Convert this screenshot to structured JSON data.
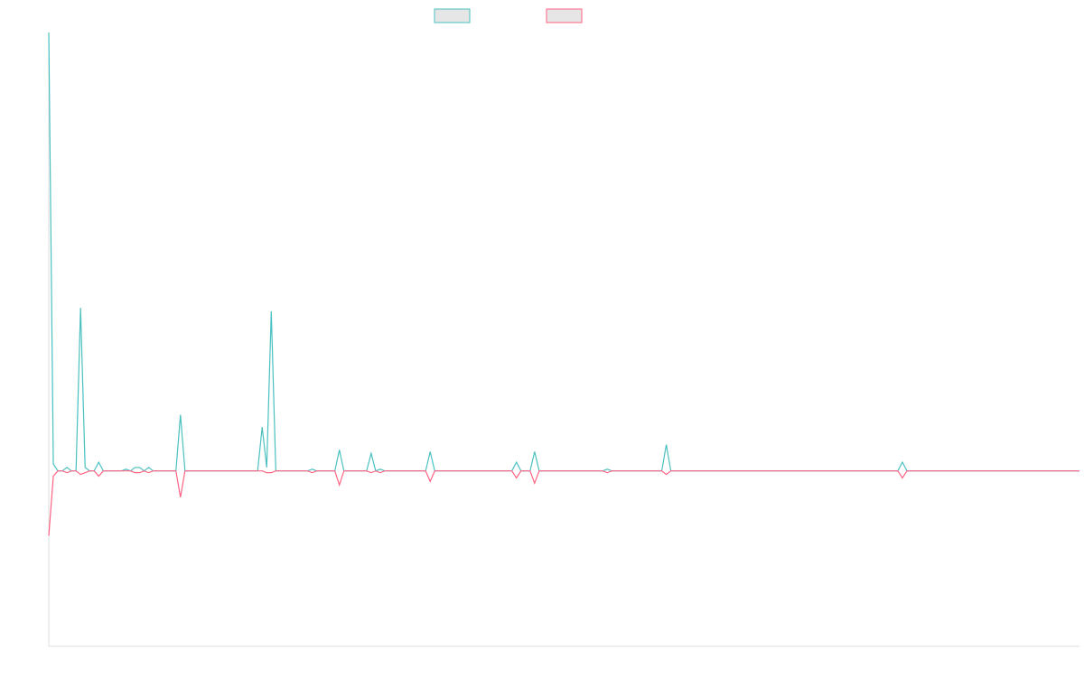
{
  "chart_data": {
    "type": "line",
    "title": "",
    "xlabel": "",
    "ylabel": "",
    "ylim": [
      -1,
      2.5
    ],
    "grid": false,
    "legend_position": "top-center",
    "colors": {
      "series_1": "#4bc0c0",
      "series_2": "#ff6384",
      "legend_fill": "#e6e6e6",
      "axis": "#dddddd"
    },
    "series": [
      {
        "values": [
          2.5,
          0.04,
          0,
          0,
          0.02,
          0,
          0,
          0.93,
          0.02,
          0,
          0,
          0.05,
          0,
          0,
          0,
          0,
          0,
          0.01,
          0,
          0.02,
          0.02,
          0,
          0.02,
          0,
          0,
          0,
          0,
          0,
          0,
          0.32,
          0,
          0,
          0,
          0,
          0,
          0,
          0,
          0,
          0,
          0,
          0,
          0,
          0,
          0,
          0,
          0,
          0,
          0.25,
          0.02,
          0.91,
          0,
          0,
          0,
          0,
          0,
          0,
          0,
          0,
          0.01,
          0,
          0,
          0,
          0,
          0,
          0.12,
          0,
          0,
          0,
          0,
          0,
          0,
          0.1,
          0,
          0.01,
          0,
          0,
          0,
          0,
          0,
          0,
          0,
          0,
          0,
          0,
          0.11,
          0,
          0,
          0,
          0,
          0,
          0,
          0,
          0,
          0,
          0,
          0,
          0,
          0,
          0,
          0,
          0,
          0,
          0,
          0.05,
          0,
          0,
          0,
          0.11,
          0,
          0,
          0,
          0,
          0,
          0,
          0,
          0,
          0,
          0,
          0,
          0,
          0,
          0,
          0,
          0.01,
          0,
          0,
          0,
          0,
          0,
          0,
          0,
          0,
          0,
          0,
          0,
          0,
          0.15,
          0,
          0,
          0,
          0,
          0,
          0,
          0,
          0,
          0,
          0,
          0,
          0,
          0,
          0,
          0,
          0,
          0,
          0,
          0,
          0,
          0,
          0,
          0,
          0,
          0,
          0,
          0,
          0,
          0,
          0,
          0,
          0,
          0,
          0,
          0,
          0,
          0,
          0,
          0,
          0,
          0,
          0,
          0,
          0,
          0,
          0,
          0,
          0,
          0,
          0,
          0,
          0.05,
          0,
          0,
          0,
          0,
          0,
          0,
          0,
          0,
          0,
          0,
          0,
          0,
          0,
          0,
          0,
          0,
          0,
          0,
          0,
          0,
          0,
          0,
          0,
          0,
          0,
          0,
          0,
          0,
          0,
          0,
          0,
          0,
          0,
          0,
          0,
          0,
          0,
          0,
          0
        ]
      },
      {
        "values": [
          -0.37,
          -0.03,
          0,
          0,
          -0.01,
          0,
          0,
          -0.02,
          -0.01,
          0,
          0,
          -0.03,
          0,
          0,
          0,
          0,
          0,
          0,
          0,
          -0.01,
          -0.01,
          0,
          -0.01,
          0,
          0,
          0,
          0,
          0,
          0,
          -0.15,
          0,
          0,
          0,
          0,
          0,
          0,
          0,
          0,
          0,
          0,
          0,
          0,
          0,
          0,
          0,
          0,
          0,
          0,
          -0.01,
          -0.01,
          0,
          0,
          0,
          0,
          0,
          0,
          0,
          0,
          -0.01,
          0,
          0,
          0,
          0,
          0,
          -0.08,
          0,
          0,
          0,
          0,
          0,
          0,
          -0.01,
          0,
          -0.01,
          0,
          0,
          0,
          0,
          0,
          0,
          0,
          0,
          0,
          0,
          -0.06,
          0,
          0,
          0,
          0,
          0,
          0,
          0,
          0,
          0,
          0,
          0,
          0,
          0,
          0,
          0,
          0,
          0,
          0,
          -0.04,
          0,
          0,
          0,
          -0.07,
          0,
          0,
          0,
          0,
          0,
          0,
          0,
          0,
          0,
          0,
          0,
          0,
          0,
          0,
          0,
          -0.01,
          0,
          0,
          0,
          0,
          0,
          0,
          0,
          0,
          0,
          0,
          0,
          0,
          -0.02,
          0,
          0,
          0,
          0,
          0,
          0,
          0,
          0,
          0,
          0,
          0,
          0,
          0,
          0,
          0,
          0,
          0,
          0,
          0,
          0,
          0,
          0,
          0,
          0,
          0,
          0,
          0,
          0,
          0,
          0,
          0,
          0,
          0,
          0,
          0,
          0,
          0,
          0,
          0,
          0,
          0,
          0,
          0,
          0,
          0,
          0,
          0,
          0,
          0,
          0,
          0,
          -0.04,
          0,
          0,
          0,
          0,
          0,
          0,
          0,
          0,
          0,
          0,
          0,
          0,
          0,
          0,
          0,
          0,
          0,
          0,
          0,
          0,
          0,
          0,
          0,
          0,
          0,
          0,
          0,
          0,
          0,
          0,
          0,
          0,
          0,
          0,
          0,
          0,
          0,
          0,
          0
        ]
      }
    ]
  }
}
